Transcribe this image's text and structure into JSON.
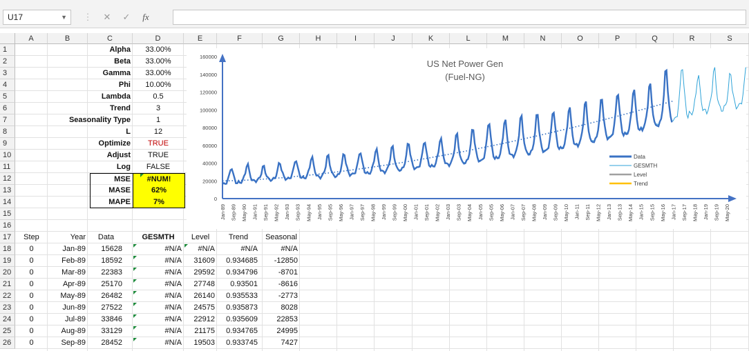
{
  "formula_bar": {
    "name_box": "U17",
    "cancel_icon": "✕",
    "enter_icon": "✓",
    "fx_label": "fx"
  },
  "columns": [
    "A",
    "B",
    "C",
    "D",
    "E",
    "F",
    "G",
    "H",
    "I",
    "J",
    "K",
    "L",
    "M",
    "N",
    "O",
    "P",
    "Q",
    "R",
    "S"
  ],
  "rows": [
    "1",
    "2",
    "3",
    "4",
    "5",
    "6",
    "7",
    "8",
    "9",
    "10",
    "11",
    "12",
    "13",
    "14",
    "15",
    "16",
    "17",
    "18",
    "19",
    "20",
    "21",
    "22",
    "23",
    "24",
    "25",
    "26"
  ],
  "params": [
    {
      "label": "Alpha",
      "value": "33.00%"
    },
    {
      "label": "Beta",
      "value": "33.00%"
    },
    {
      "label": "Gamma",
      "value": "33.00%"
    },
    {
      "label": "Phi",
      "value": "10.00%"
    },
    {
      "label": "Lambda",
      "value": "0.5"
    },
    {
      "label": "Trend",
      "value": "3"
    },
    {
      "label": "Seasonality Type",
      "value": "1"
    },
    {
      "label": "L",
      "value": "12"
    },
    {
      "label": "Optimize",
      "value": "TRUE"
    },
    {
      "label": "Adjust",
      "value": "TRUE"
    },
    {
      "label": "Log",
      "value": "FALSE"
    }
  ],
  "metrics": [
    {
      "label": "MSE",
      "value": "#NUM!"
    },
    {
      "label": "MASE",
      "value": "62%"
    },
    {
      "label": "MAPE",
      "value": "7%"
    }
  ],
  "table": {
    "headers": [
      "Step",
      "Year",
      "Data",
      "GESMTH",
      "Level",
      "Trend",
      "Seasonal"
    ],
    "rows": [
      [
        "0",
        "Jan-89",
        "15628",
        "#N/A",
        "#N/A",
        "#N/A",
        "#N/A"
      ],
      [
        "0",
        "Feb-89",
        "18592",
        "#N/A",
        "31609",
        "0.934685",
        "-12850"
      ],
      [
        "0",
        "Mar-89",
        "22383",
        "#N/A",
        "29592",
        "0.934796",
        "-8701"
      ],
      [
        "0",
        "Apr-89",
        "25170",
        "#N/A",
        "27748",
        "0.93501",
        "-8616"
      ],
      [
        "0",
        "May-89",
        "26482",
        "#N/A",
        "26140",
        "0.935533",
        "-2773"
      ],
      [
        "0",
        "Jun-89",
        "27522",
        "#N/A",
        "24575",
        "0.935873",
        "8028"
      ],
      [
        "0",
        "Jul-89",
        "33846",
        "#N/A",
        "22912",
        "0.935609",
        "22853"
      ],
      [
        "0",
        "Aug-89",
        "33129",
        "#N/A",
        "21175",
        "0.934765",
        "24995"
      ],
      [
        "0",
        "Sep-89",
        "28452",
        "#N/A",
        "19503",
        "0.933745",
        "7427"
      ]
    ]
  },
  "chart_data": {
    "type": "line",
    "title": "US Net Power Gen (Fuel-NG)",
    "title_lines": [
      "US Net Power Gen",
      "(Fuel-NG)"
    ],
    "ylim": [
      0,
      160000
    ],
    "yticks": [
      "0",
      "20000",
      "40000",
      "60000",
      "80000",
      "100000",
      "120000",
      "140000",
      "160000"
    ],
    "xticks": [
      "Jan-89",
      "Sep-89",
      "May-90",
      "Jan-91",
      "Sep-91",
      "May-92",
      "Jan-93",
      "Sep-93",
      "May-94",
      "Jan-95",
      "Sep-95",
      "May-96",
      "Jan-97",
      "Sep-97",
      "May-98",
      "Jan-99",
      "Sep-99",
      "May-00",
      "Jan-01",
      "Sep-01",
      "May-02",
      "Jan-03",
      "Sep-03",
      "May-04",
      "Jan-05",
      "Sep-05",
      "May-06",
      "Jan-07",
      "Sep-07",
      "May-08",
      "Jan-09",
      "Sep-09",
      "May-10",
      "Jan-11",
      "Sep-11",
      "May-12",
      "Jan-13",
      "Sep-13",
      "May-14",
      "Jan-15",
      "Sep-15",
      "May-16",
      "Jan-17",
      "Sep-17",
      "May-18",
      "Jan-19",
      "Sep-19",
      "May-20"
    ],
    "legend_position": "right",
    "series": [
      {
        "name": "Data",
        "color": "#3a72c4",
        "x_range": [
          "Jan-89",
          "Jan-17"
        ],
        "annual_peaks": [
          34000,
          38000,
          36000,
          40000,
          43000,
          46000,
          48000,
          50000,
          52000,
          55000,
          58000,
          62000,
          64000,
          67000,
          72000,
          78000,
          85000,
          88000,
          92000,
          95000,
          98000,
          102000,
          108000,
          112000,
          118000,
          122000,
          128000,
          145000
        ],
        "annual_troughs": [
          16000,
          18000,
          20000,
          21000,
          22000,
          23000,
          24000,
          25000,
          27000,
          28000,
          30000,
          32000,
          34000,
          36000,
          38000,
          40000,
          42000,
          45000,
          48000,
          50000,
          53000,
          56000,
          60000,
          64000,
          68000,
          72000,
          78000,
          82000
        ]
      },
      {
        "name": "GESMTH",
        "color": "#2fa3d8",
        "x_range": [
          "Jan-90",
          "May-20"
        ],
        "forecast_peaks": [
          148000,
          138000,
          145000,
          140000,
          150000
        ],
        "forecast_troughs": [
          88000,
          95000,
          98000,
          100000,
          104000
        ]
      },
      {
        "name": "Level",
        "color": "#a0a0a0"
      },
      {
        "name": "Trend",
        "color": "#ffc000"
      }
    ],
    "trend_line": {
      "color": "#2f6cc0",
      "start": 20000,
      "end": 110000
    }
  }
}
